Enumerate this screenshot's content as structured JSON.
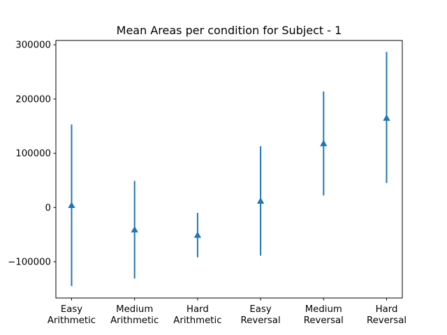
{
  "chart_data": {
    "type": "errorbar",
    "title": "Mean Areas per condition for Subject - 1",
    "xlabel": "",
    "ylabel": "",
    "categories": [
      [
        "Easy",
        "Arithmetic"
      ],
      [
        "Medium",
        "Arithmetic"
      ],
      [
        "Hard",
        "Arithmetic"
      ],
      [
        "Easy",
        "Reversal"
      ],
      [
        "Medium",
        "Reversal"
      ],
      [
        "Hard",
        "Reversal"
      ]
    ],
    "means": [
      4000,
      -41000,
      -51000,
      12000,
      118000,
      165000
    ],
    "lower": [
      -145000,
      -131000,
      -92000,
      -89000,
      22000,
      45000
    ],
    "upper": [
      153000,
      49000,
      -10000,
      113000,
      214000,
      287000
    ],
    "ylim": [
      -167000,
      308000
    ],
    "yticks": [
      300000,
      200000,
      100000,
      0,
      -100000
    ],
    "ytick_labels": [
      "300000",
      "200000",
      "100000",
      "0",
      "−100000"
    ],
    "marker": "triangle-up",
    "color": "#1f77b4",
    "grid": false,
    "legend": null
  }
}
